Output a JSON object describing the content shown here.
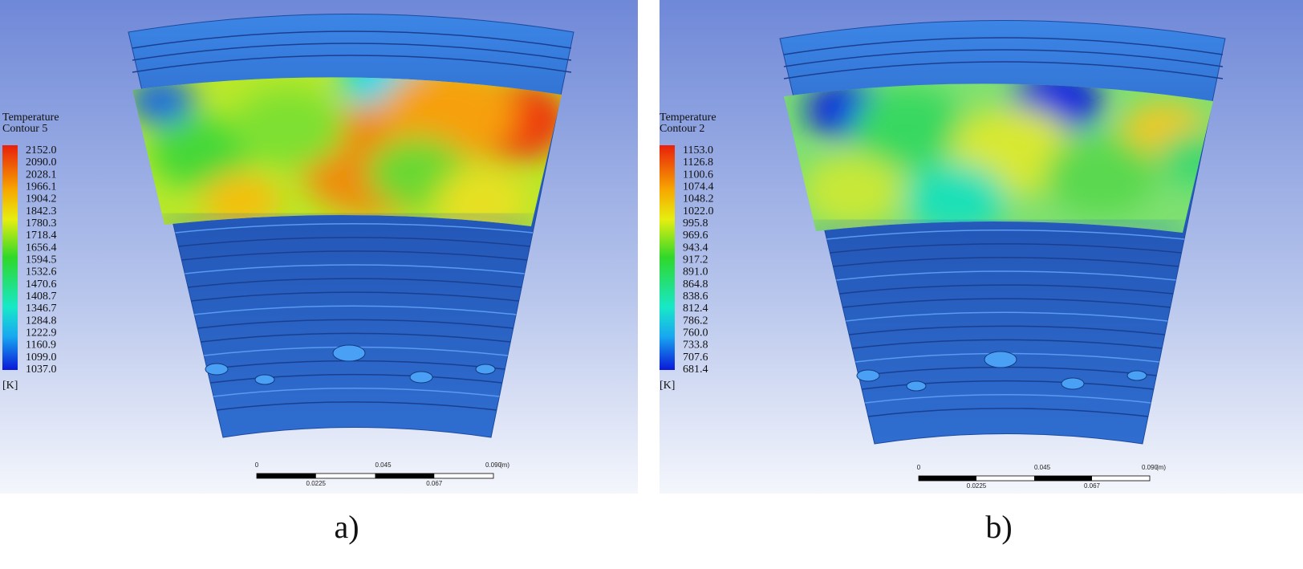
{
  "panels": [
    {
      "caption": "a)",
      "legend": {
        "title": "Temperature",
        "subtitle": "Contour 5",
        "unit": "[K]",
        "ticks": [
          "2152.0",
          "2090.0",
          "2028.1",
          "1966.1",
          "1904.2",
          "1842.3",
          "1780.3",
          "1718.4",
          "1656.4",
          "1594.5",
          "1532.6",
          "1470.6",
          "1408.7",
          "1346.7",
          "1284.8",
          "1222.9",
          "1160.9",
          "1099.0",
          "1037.0"
        ]
      },
      "scale_bar": {
        "top": [
          "0",
          "0.045",
          "0.090",
          "(m)"
        ],
        "bottom": [
          "0.0225",
          "0.067"
        ]
      }
    },
    {
      "caption": "b)",
      "legend": {
        "title": "Temperature",
        "subtitle": "Contour 2",
        "unit": "[K]",
        "ticks": [
          "1153.0",
          "1126.8",
          "1100.6",
          "1074.4",
          "1048.2",
          "1022.0",
          "995.8",
          "969.6",
          "943.4",
          "917.2",
          "891.0",
          "864.8",
          "838.6",
          "812.4",
          "786.2",
          "760.0",
          "733.8",
          "707.6",
          "681.4"
        ]
      },
      "scale_bar": {
        "top": [
          "0",
          "0.045",
          "0.090",
          "(m)"
        ],
        "bottom": [
          "0.0225",
          "0.067"
        ]
      }
    }
  ]
}
